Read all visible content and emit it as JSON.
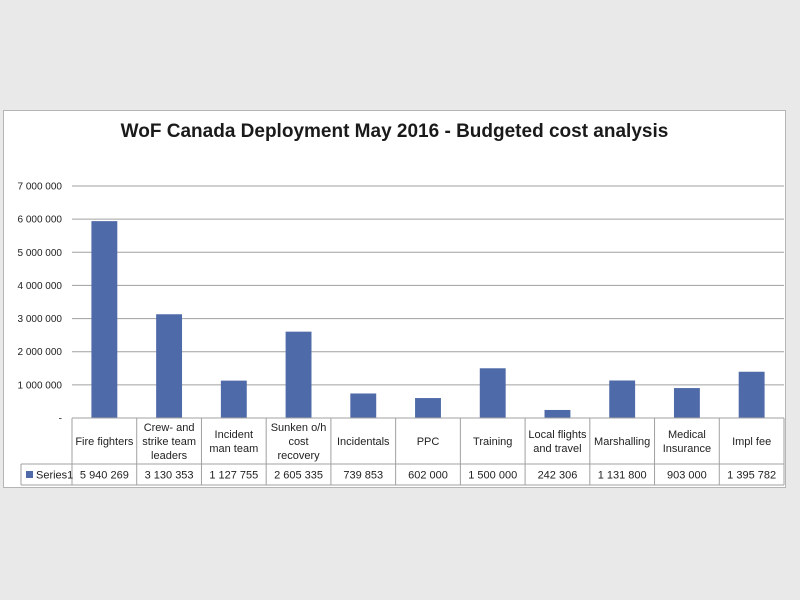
{
  "chart_data": {
    "type": "bar",
    "title": "WoF Canada Deployment May 2016 - Budgeted cost analysis",
    "categories": [
      [
        "Fire fighters"
      ],
      [
        "Crew- and",
        "strike team",
        "leaders"
      ],
      [
        "Incident",
        "man team"
      ],
      [
        "Sunken o/h",
        "cost",
        "recovery"
      ],
      [
        "Incidentals"
      ],
      [
        "PPC"
      ],
      [
        "Training"
      ],
      [
        "Local flights",
        "and travel"
      ],
      [
        "Marshalling"
      ],
      [
        "Medical",
        "Insurance"
      ],
      [
        "Impl fee"
      ]
    ],
    "series": [
      {
        "name": "Series1",
        "values": [
          5940269,
          3130353,
          1127755,
          2605335,
          739853,
          602000,
          1500000,
          242306,
          1131800,
          903000,
          1395782
        ],
        "value_labels": [
          "5 940 269",
          "3 130 353",
          "1 127 755",
          "2 605 335",
          "739 853",
          "602 000",
          "1 500 000",
          "242 306",
          "1 131 800",
          "903 000",
          "1 395 782"
        ],
        "color": "#4f6aa8"
      }
    ],
    "ylim": [
      0,
      7000000
    ],
    "yticks": [
      {
        "value": 0,
        "label": "-"
      },
      {
        "value": 1000000,
        "label": "1 000 000"
      },
      {
        "value": 2000000,
        "label": "2 000 000"
      },
      {
        "value": 3000000,
        "label": "3 000 000"
      },
      {
        "value": 4000000,
        "label": "4 000 000"
      },
      {
        "value": 5000000,
        "label": "5 000 000"
      },
      {
        "value": 6000000,
        "label": "6 000 000"
      },
      {
        "value": 7000000,
        "label": "7 000 000"
      }
    ],
    "grid": true,
    "legend": "data-table",
    "gridColor": "#a0a0a0"
  }
}
